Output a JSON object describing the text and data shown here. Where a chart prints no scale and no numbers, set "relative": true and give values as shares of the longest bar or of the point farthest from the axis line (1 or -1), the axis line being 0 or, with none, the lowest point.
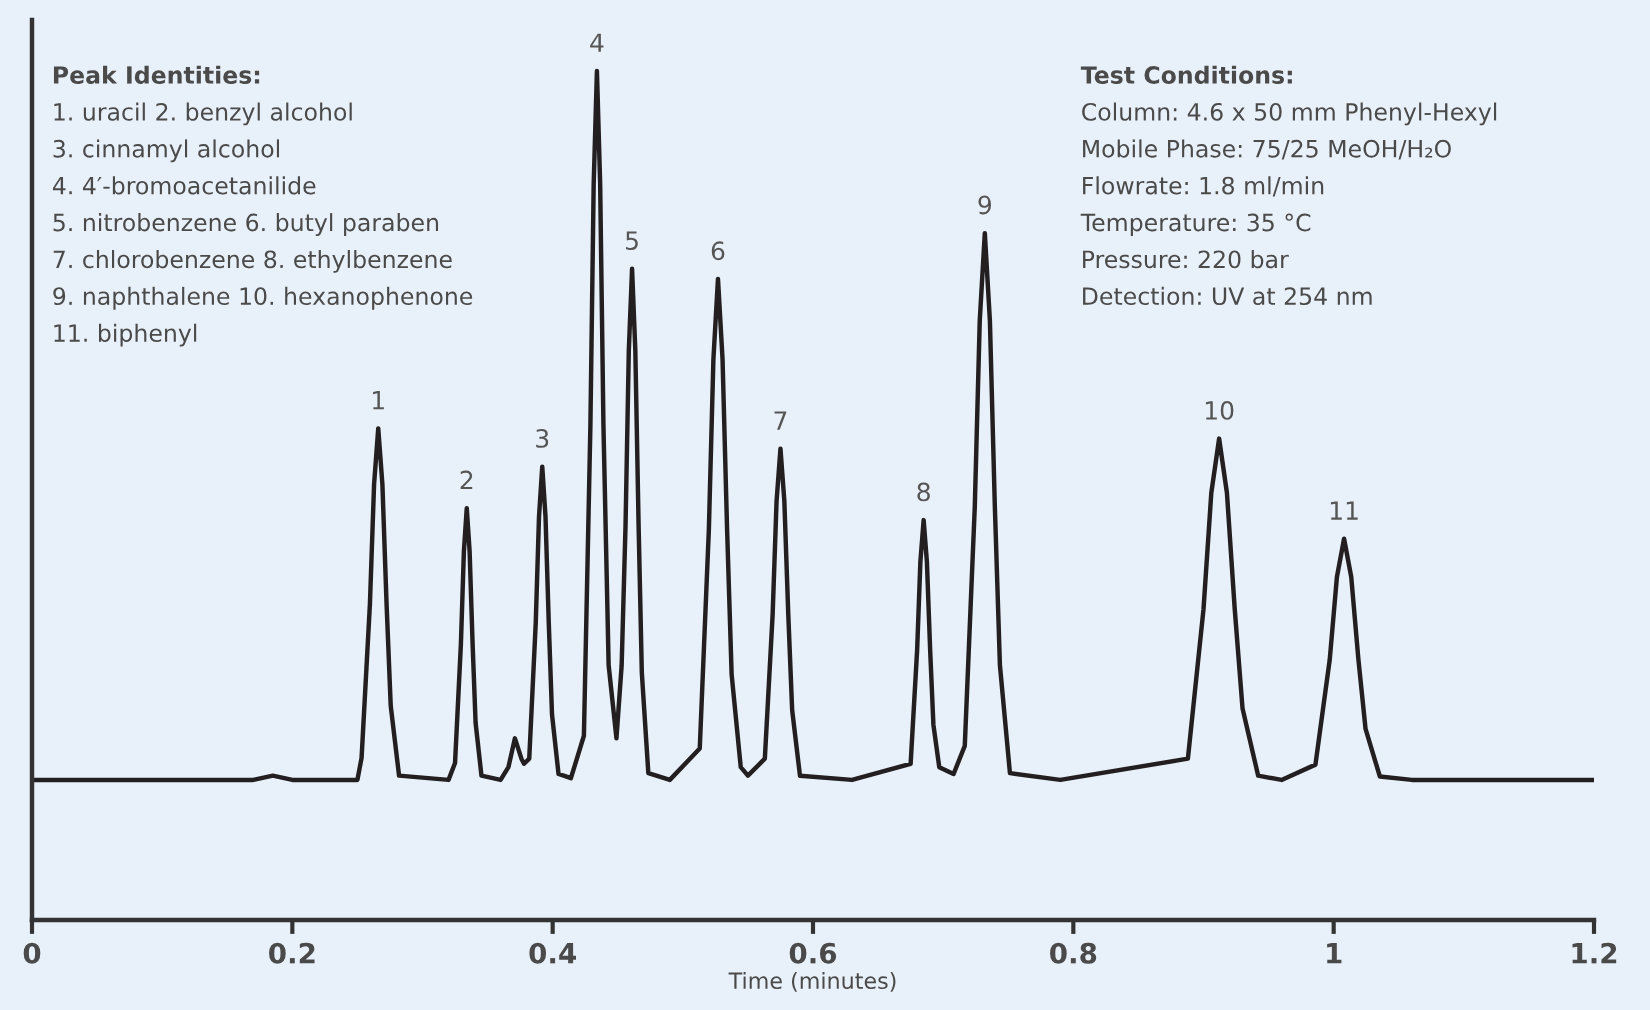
{
  "chart_data": {
    "type": "line",
    "relative": true,
    "xlabel": "Time (minutes)",
    "xlim": [
      0,
      1.2
    ],
    "xticks": [
      0,
      0.2,
      0.4,
      0.6,
      0.8,
      1,
      1.2
    ],
    "grid": false,
    "legend": false,
    "marker": "none",
    "line_style": "solid",
    "series": [
      {
        "color": "#231f20",
        "x": [
          0,
          0.17,
          0.185,
          0.2,
          0.25,
          0.2532,
          0.2596,
          0.2628,
          0.266,
          0.2692,
          0.2724,
          0.2756,
          0.282,
          0.32,
          0.325,
          0.3295,
          0.3318,
          0.334,
          0.3362,
          0.3385,
          0.3408,
          0.3453,
          0.36,
          0.366,
          0.371,
          0.376,
          0.378,
          0.382,
          0.387,
          0.3895,
          0.392,
          0.3945,
          0.397,
          0.3995,
          0.4045,
          0.414,
          0.424,
          0.429,
          0.4315,
          0.434,
          0.4365,
          0.439,
          0.443,
          0.449,
          0.453,
          0.456,
          0.4585,
          0.461,
          0.4635,
          0.466,
          0.4685,
          0.4735,
          0.49,
          0.513,
          0.52,
          0.5235,
          0.527,
          0.5305,
          0.534,
          0.5375,
          0.5445,
          0.55,
          0.563,
          0.569,
          0.572,
          0.575,
          0.578,
          0.581,
          0.584,
          0.59,
          0.63,
          0.675,
          0.68,
          0.6825,
          0.685,
          0.6875,
          0.69,
          0.6925,
          0.697,
          0.708,
          0.7166,
          0.7243,
          0.7281,
          0.732,
          0.7359,
          0.7397,
          0.7436,
          0.7513,
          0.79,
          0.888,
          0.9,
          0.906,
          0.912,
          0.918,
          0.924,
          0.93,
          0.942,
          0.96,
          0.986,
          0.997,
          1.0025,
          1.008,
          1.0135,
          1.019,
          1.0245,
          1.0355,
          1.06,
          1.2
        ],
        "values": [
          0.165,
          0.165,
          0.17,
          0.165,
          0.165,
          0.191,
          0.372,
          0.513,
          0.579,
          0.513,
          0.372,
          0.252,
          0.17,
          0.165,
          0.185,
          0.325,
          0.434,
          0.485,
          0.434,
          0.325,
          0.232,
          0.17,
          0.165,
          0.18,
          0.214,
          0.19,
          0.184,
          0.19,
          0.35,
          0.475,
          0.534,
          0.475,
          0.35,
          0.242,
          0.172,
          0.167,
          0.217,
          0.583,
          0.866,
          1.0,
          0.866,
          0.583,
          0.3,
          0.214,
          0.3,
          0.466,
          0.671,
          0.767,
          0.671,
          0.466,
          0.291,
          0.173,
          0.165,
          0.202,
          0.46,
          0.661,
          0.755,
          0.661,
          0.46,
          0.289,
          0.18,
          0.17,
          0.19,
          0.36,
          0.493,
          0.555,
          0.493,
          0.36,
          0.247,
          0.17,
          0.165,
          0.184,
          0.318,
          0.422,
          0.471,
          0.422,
          0.318,
          0.23,
          0.18,
          0.172,
          0.205,
          0.487,
          0.706,
          0.809,
          0.706,
          0.487,
          0.3,
          0.173,
          0.165,
          0.19,
          0.366,
          0.503,
          0.567,
          0.503,
          0.366,
          0.249,
          0.17,
          0.165,
          0.183,
          0.307,
          0.404,
          0.449,
          0.404,
          0.307,
          0.225,
          0.169,
          0.165,
          0.165
        ]
      }
    ],
    "annotations": [
      {
        "text": "1",
        "x": 0.266,
        "y": 0.579
      },
      {
        "text": "2",
        "x": 0.334,
        "y": 0.485
      },
      {
        "text": "3",
        "x": 0.392,
        "y": 0.534
      },
      {
        "text": "4",
        "x": 0.434,
        "y": 1.0
      },
      {
        "text": "5",
        "x": 0.461,
        "y": 0.767
      },
      {
        "text": "6",
        "x": 0.527,
        "y": 0.755
      },
      {
        "text": "7",
        "x": 0.575,
        "y": 0.555
      },
      {
        "text": "8",
        "x": 0.685,
        "y": 0.471
      },
      {
        "text": "9",
        "x": 0.732,
        "y": 0.809
      },
      {
        "text": "10",
        "x": 0.912,
        "y": 0.567
      },
      {
        "text": "11",
        "x": 1.008,
        "y": 0.449
      },
      "Peak Identities:\n1. uracil 2. benzyl alcohol\n3. cinnamyl alcohol\n4. 4′-bromoacetanilide\n5. nitrobenzene 6. butyl paraben\n7. chlorobenzene 8. ethylbenzene\n9. naphthalene 10. hexanophenone\n11. biphenyl",
      "Test Conditions:\nColumn: 4.6 x 50 mm Phenyl-Hexyl\nMobile Phase: 75/25 MeOH/H₂O\nFlowrate: 1.8 ml/min\nTemperature: 35 °C\nPressure: 220 bar\nDetection: UV at 254 nm"
    ]
  }
}
